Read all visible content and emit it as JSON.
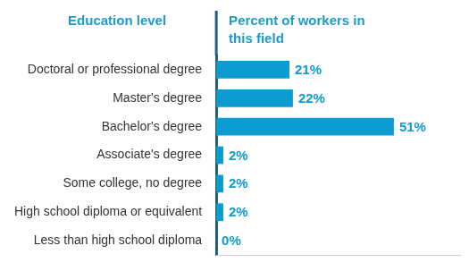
{
  "chart_data": {
    "type": "bar",
    "orientation": "horizontal",
    "y_label": "Education level",
    "x_label": "Percent of workers in this field",
    "categories": [
      "Doctoral or professional degree",
      "Master's degree",
      "Bachelor's degree",
      "Associate's degree",
      "Some college, no degree",
      "High school diploma or equivalent",
      "Less than high school diploma"
    ],
    "values": [
      21,
      22,
      51,
      2,
      2,
      2,
      0
    ],
    "value_labels": [
      "21%",
      "22%",
      "51%",
      "2%",
      "2%",
      "2%",
      "0%"
    ],
    "color": "#0d9ccf",
    "xlim": [
      0,
      70
    ],
    "grid": false,
    "data_labels": true,
    "tick_labels": "y"
  }
}
